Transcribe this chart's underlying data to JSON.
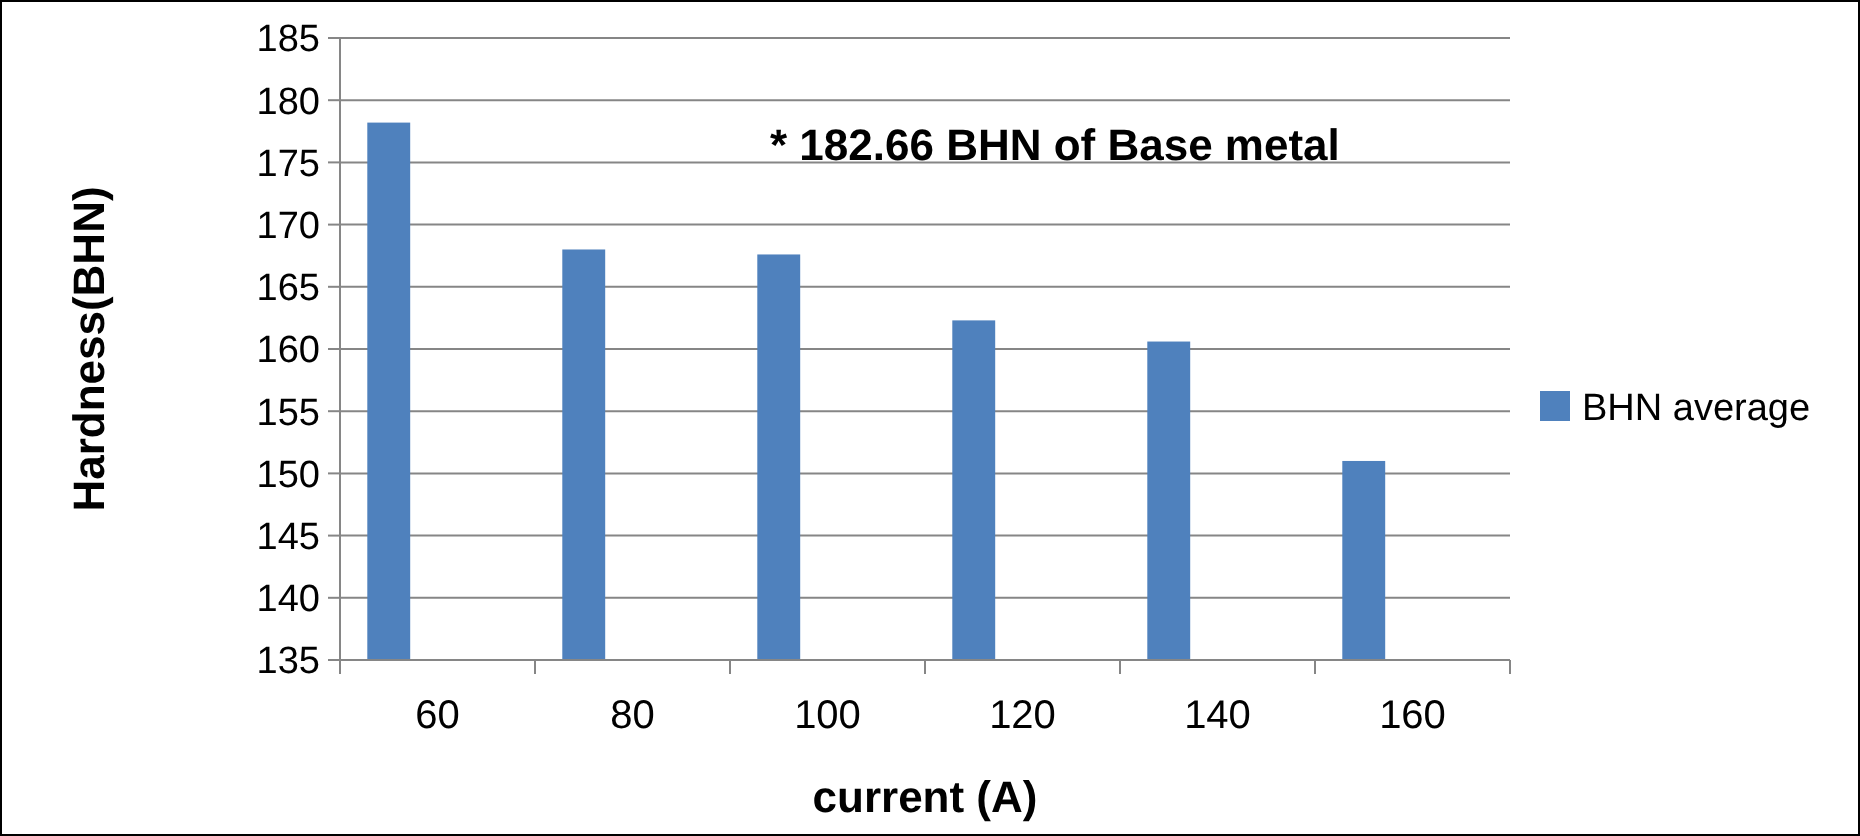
{
  "chart_data": {
    "type": "bar",
    "xlabel": "current (A)",
    "ylabel": "Hardness(BHN)",
    "annotations": [
      "* 182.66 BHN of Base metal"
    ],
    "categories": [
      "60",
      "80",
      "100",
      "120",
      "140",
      "160"
    ],
    "series": [
      {
        "name": "BHN average",
        "color": "#4f81bd",
        "values": [
          178.2,
          168.0,
          167.6,
          162.3,
          160.6,
          151.0
        ]
      }
    ],
    "ylim": [
      135,
      185
    ],
    "yticks": [
      135,
      140,
      145,
      150,
      155,
      160,
      165,
      170,
      175,
      180,
      185
    ],
    "grid": "y",
    "legend": "right"
  }
}
